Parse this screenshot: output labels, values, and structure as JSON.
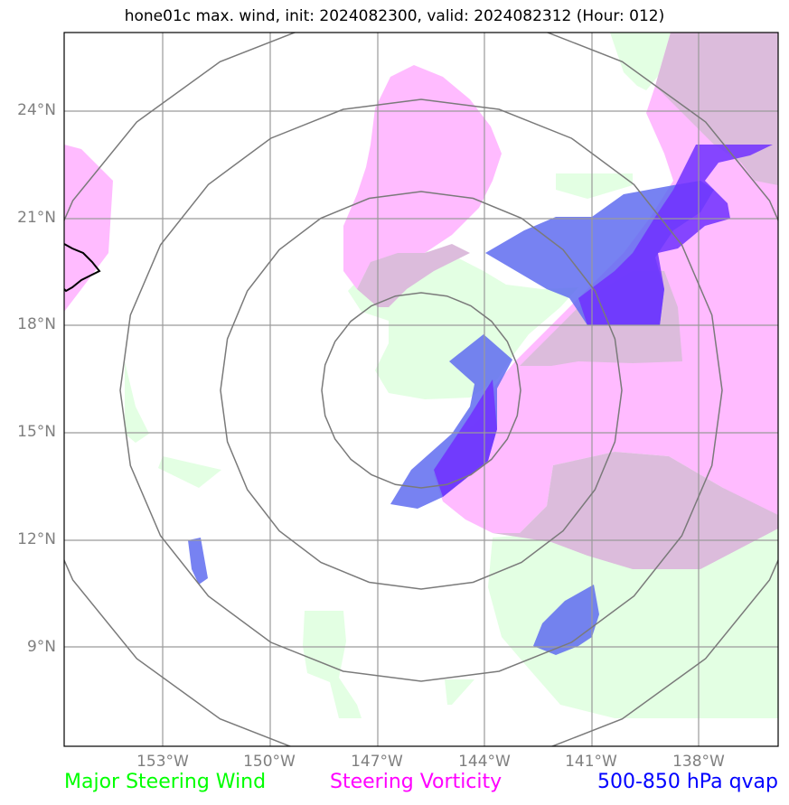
{
  "title": "hone01c max. wind, init: 2024082300, valid: 2024082312 (Hour: 012)",
  "lat_labels": [
    "24°N",
    "21°N",
    "18°N",
    "15°N",
    "12°N",
    "9°N"
  ],
  "lon_labels": [
    "153°W",
    "150°W",
    "147°W",
    "144°W",
    "141°W",
    "138°W"
  ],
  "legend": {
    "wind": {
      "label": "Major Steering Wind",
      "color": "#00ff00"
    },
    "vorticity": {
      "label": "Steering Vorticity",
      "color": "#ff00ff"
    },
    "qvap": {
      "label": "500-850 hPa qvap",
      "color": "#0000ff"
    }
  },
  "colors": {
    "wind_fill": "#e3ffe3",
    "vorticity_fill": "#ffbbff",
    "overlap_fill": "#dcbcdc",
    "qvap_fill": "#5f6cf0",
    "qvap_dark": "#7030ff",
    "grid": "#9a9a9a",
    "rings": "#7a7a7a"
  }
}
